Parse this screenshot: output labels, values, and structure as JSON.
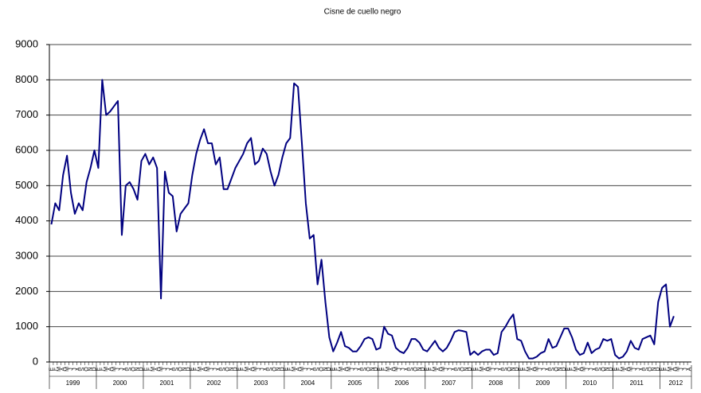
{
  "chart_data": {
    "type": "line",
    "title": "Cisne de cuello negro",
    "categories": [
      "E",
      "F",
      "M",
      "A",
      "M",
      "J",
      "J",
      "A",
      "S",
      "O",
      "N",
      "D",
      "E",
      "F",
      "M",
      "A",
      "M",
      "J",
      "J",
      "A",
      "S",
      "O",
      "N",
      "D",
      "E",
      "F",
      "M",
      "A",
      "M",
      "J",
      "J",
      "A",
      "S",
      "O",
      "N",
      "D",
      "E",
      "F",
      "M",
      "A",
      "M",
      "J",
      "J",
      "A",
      "S",
      "O",
      "N",
      "D",
      "E",
      "F",
      "M",
      "A",
      "M",
      "J",
      "J",
      "A",
      "S",
      "O",
      "N",
      "D",
      "E",
      "F",
      "M",
      "A",
      "M",
      "J",
      "J",
      "A",
      "S",
      "O",
      "N",
      "D",
      "E",
      "F",
      "M",
      "A",
      "M",
      "J",
      "J",
      "A",
      "S",
      "O",
      "N",
      "D",
      "E",
      "F",
      "M",
      "A",
      "M",
      "J",
      "J",
      "A",
      "S",
      "O",
      "N",
      "D",
      "E",
      "F",
      "M",
      "A",
      "M",
      "J",
      "J",
      "A",
      "S",
      "O",
      "N",
      "D",
      "E",
      "F",
      "M",
      "A",
      "M",
      "J",
      "J",
      "A",
      "S",
      "O",
      "N",
      "D",
      "E",
      "F",
      "M",
      "A",
      "M",
      "J",
      "J",
      "A",
      "S",
      "O",
      "N",
      "D",
      "E",
      "F",
      "M",
      "A",
      "M",
      "J",
      "J",
      "A",
      "S",
      "O",
      "N",
      "D",
      "E",
      "F",
      "M",
      "A",
      "M",
      "J",
      "J",
      "A",
      "S",
      "O",
      "N",
      "D",
      "E",
      "F",
      "M",
      "A",
      "M",
      "J",
      "J",
      "A"
    ],
    "years": [
      "1999",
      "2000",
      "2001",
      "2002",
      "2003",
      "2004",
      "2005",
      "2006",
      "2007",
      "2008",
      "2009",
      "2010",
      "2011",
      "2012"
    ],
    "series": [
      {
        "name": "Cisne de cuello negro",
        "color": "#000080",
        "values": [
          3900,
          4500,
          4300,
          5300,
          5850,
          4800,
          4200,
          4500,
          4300,
          5100,
          5500,
          6000,
          5500,
          8000,
          7000,
          7100,
          7250,
          7400,
          3600,
          5000,
          5100,
          4900,
          4600,
          5700,
          5900,
          5600,
          5800,
          5500,
          1800,
          5400,
          4800,
          4700,
          3700,
          4200,
          4350,
          4500,
          5300,
          5900,
          6300,
          6600,
          6200,
          6200,
          5600,
          5800,
          4900,
          4900,
          5200,
          5500,
          5700,
          5900,
          6200,
          6350,
          5600,
          5700,
          6050,
          5900,
          5400,
          5000,
          5300,
          5800,
          6200,
          6350,
          7900,
          7800,
          6200,
          4500,
          3500,
          3600,
          2200,
          2900,
          1700,
          700,
          300,
          550,
          850,
          450,
          400,
          300,
          300,
          450,
          650,
          700,
          650,
          350,
          400,
          1000,
          800,
          750,
          400,
          300,
          250,
          400,
          650,
          650,
          550,
          350,
          300,
          450,
          600,
          400,
          300,
          400,
          600,
          850,
          900,
          880,
          850,
          200,
          300,
          200,
          300,
          350,
          350,
          200,
          250,
          850,
          1000,
          1200,
          1350,
          650,
          600,
          300,
          100,
          100,
          150,
          250,
          300,
          650,
          400,
          450,
          700,
          950,
          950,
          700,
          350,
          200,
          250,
          550,
          250,
          350,
          400,
          650,
          600,
          650,
          200,
          100,
          150,
          300,
          600,
          400,
          350,
          650,
          700,
          750,
          500,
          1700,
          2100,
          2200,
          1000,
          1300,
          null,
          null,
          null,
          null
        ]
      }
    ],
    "ylim": [
      0,
      9000
    ],
    "yticks": [
      0,
      1000,
      2000,
      3000,
      4000,
      5000,
      6000,
      7000,
      8000,
      9000
    ],
    "grid": true
  }
}
